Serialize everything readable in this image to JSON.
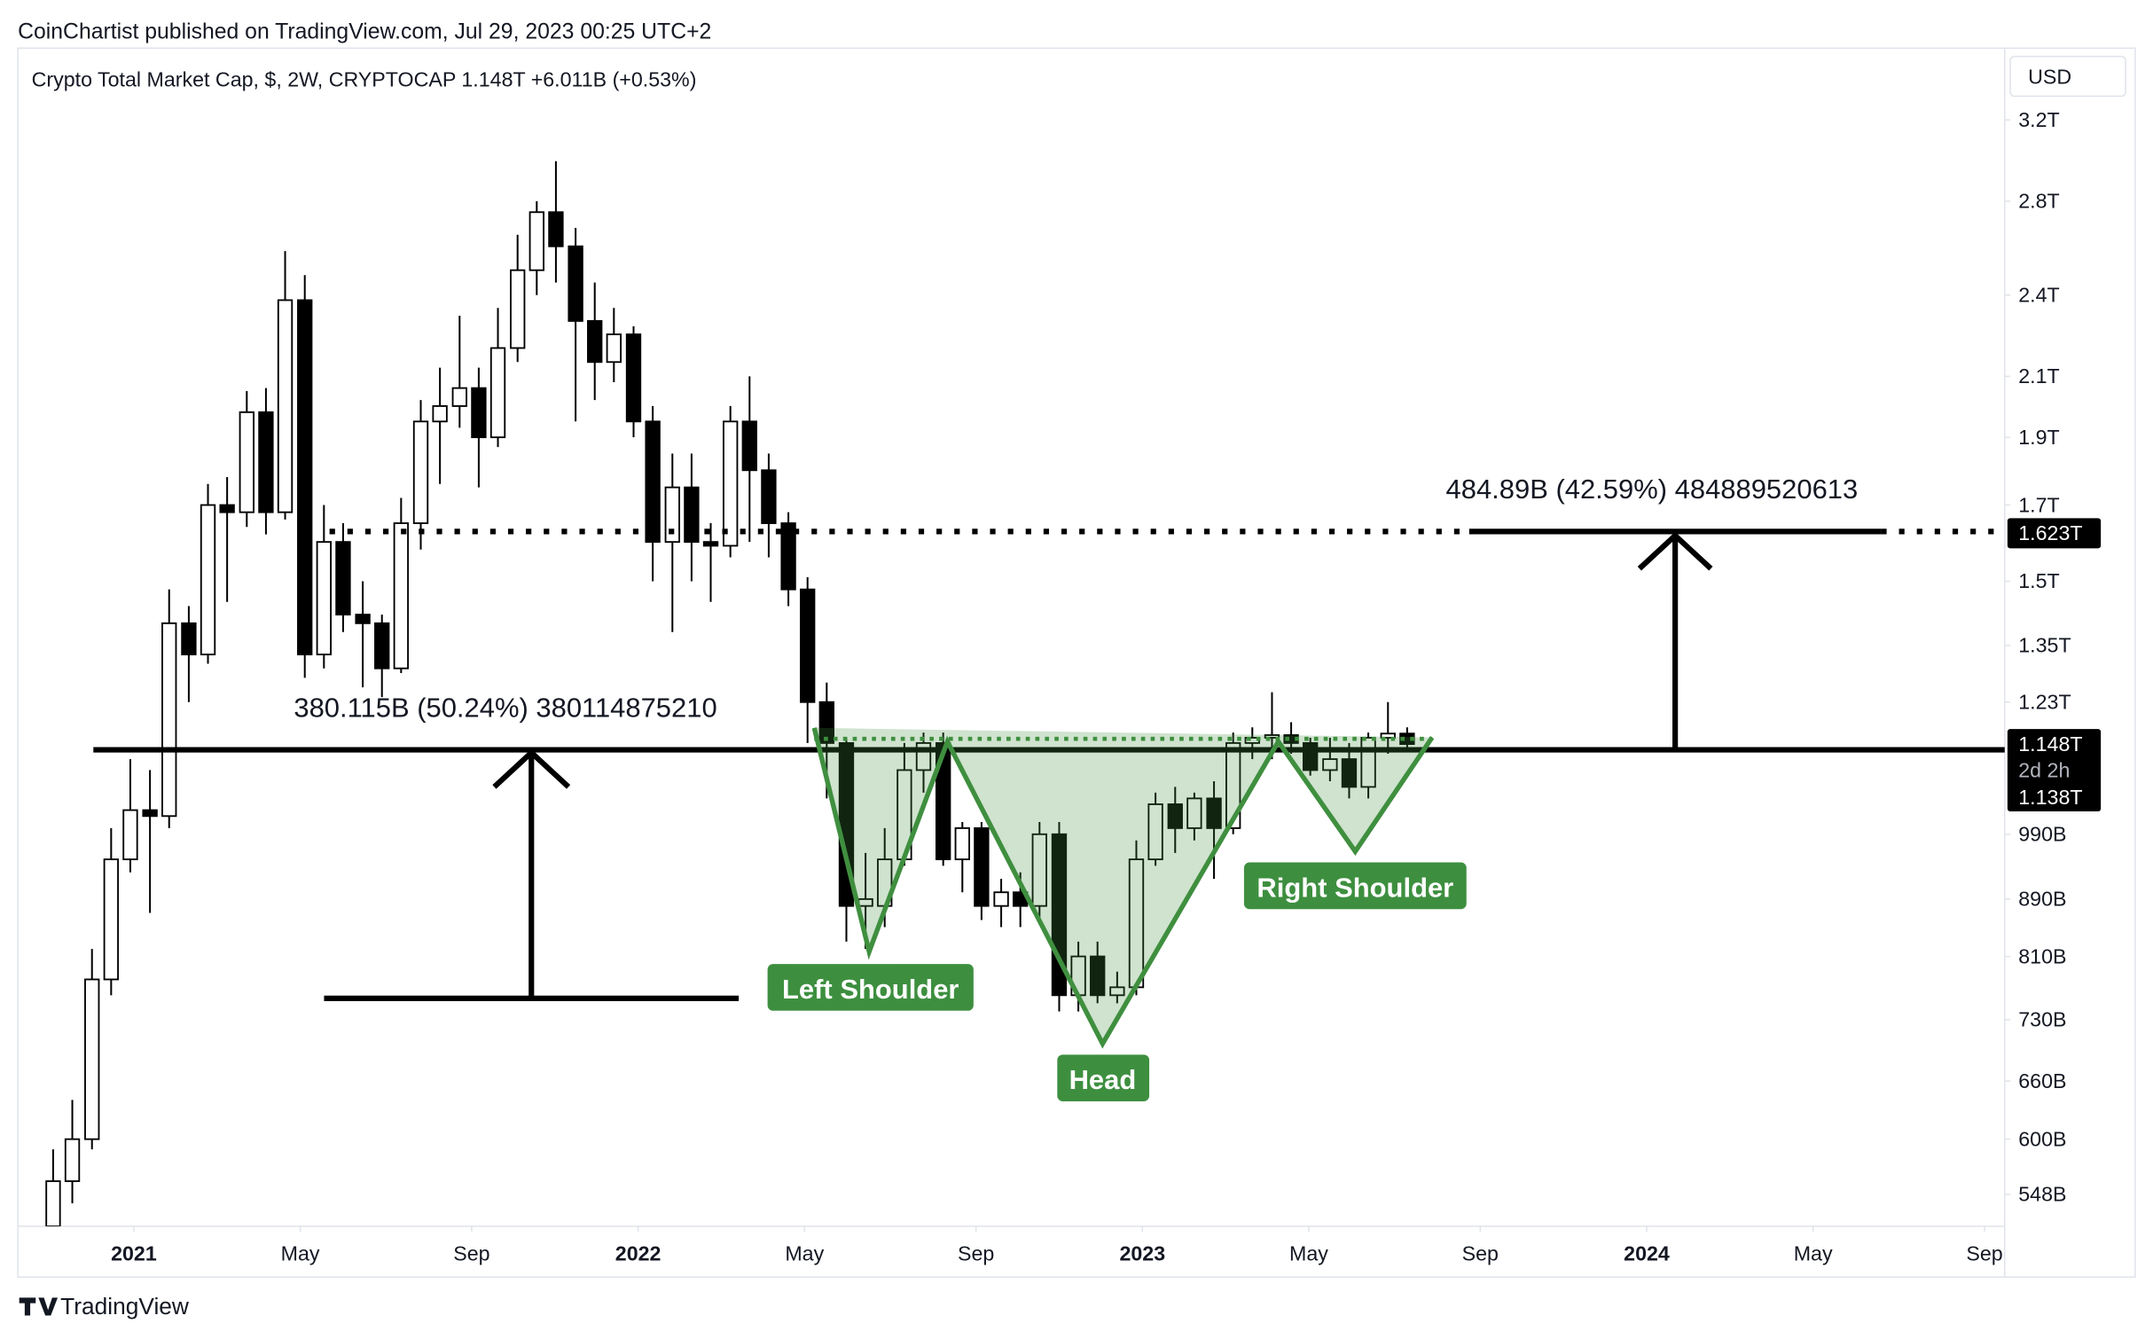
{
  "header": {
    "publisher": "CoinChartist published on TradingView.com, Jul 29, 2023 00:25 UTC+2",
    "currency": "USD",
    "footer": "TradingView"
  },
  "chart_data": {
    "type": "candlestick",
    "title": "Crypto Total Market Cap, $, 2W, CRYPTOCAP  1.148T  +6.011B (+0.53%)",
    "log_scale": true,
    "grid": false,
    "up_color": "#ffffff",
    "down_color": "#000000",
    "x": [
      2020.84,
      2020.878,
      2020.917,
      2020.955,
      2020.993,
      2021.032,
      2021.07,
      2021.109,
      2021.147,
      2021.185,
      2021.224,
      2021.262,
      2021.3,
      2021.339,
      2021.377,
      2021.415,
      2021.454,
      2021.492,
      2021.53,
      2021.569,
      2021.607,
      2021.646,
      2021.684,
      2021.722,
      2021.761,
      2021.799,
      2021.837,
      2021.876,
      2021.914,
      2021.952,
      2021.991,
      2022.029,
      2022.068,
      2022.106,
      2022.144,
      2022.183,
      2022.221,
      2022.259,
      2022.298,
      2022.336,
      2022.374,
      2022.413,
      2022.451,
      2022.489,
      2022.528,
      2022.566,
      2022.605,
      2022.643,
      2022.681,
      2022.72,
      2022.758,
      2022.796,
      2022.835,
      2022.873,
      2022.911,
      2022.95,
      2022.988,
      2023.026,
      2023.065,
      2023.103,
      2023.142,
      2023.18,
      2023.218,
      2023.257,
      2023.295,
      2023.333,
      2023.372,
      2023.41,
      2023.448,
      2023.487,
      2023.525
    ],
    "open": [
      520,
      560,
      600,
      780,
      950,
      1030,
      1020,
      1400,
      1330,
      1700,
      1680,
      1980,
      1680,
      2380,
      1330,
      1600,
      1420,
      1400,
      1300,
      1650,
      1950,
      2000,
      2060,
      1900,
      2200,
      2500,
      2750,
      2600,
      2300,
      2150,
      2250,
      1950,
      1600,
      1750,
      1600,
      1590,
      1950,
      1800,
      1650,
      1480,
      1230,
      1150,
      880,
      880,
      950,
      1100,
      1150,
      950,
      1000,
      880,
      900,
      880,
      990,
      760,
      810,
      760,
      770,
      950,
      1040,
      1000,
      1050,
      1000,
      1150,
      1160,
      1165,
      1150,
      1100,
      1120,
      1070,
      1160,
      1168
    ],
    "high": [
      590,
      640,
      820,
      1000,
      1120,
      1100,
      1480,
      1440,
      1760,
      1780,
      2050,
      2060,
      2580,
      2480,
      1700,
      1650,
      1500,
      1420,
      1720,
      2020,
      2130,
      2320,
      2130,
      2350,
      2650,
      2800,
      2990,
      2680,
      2450,
      2350,
      2280,
      2000,
      1850,
      1850,
      1650,
      2000,
      2100,
      1850,
      1680,
      1510,
      1270,
      1160,
      960,
      1000,
      1150,
      1170,
      1170,
      1010,
      1010,
      920,
      930,
      1010,
      1010,
      830,
      830,
      790,
      980,
      1060,
      1070,
      1060,
      1080,
      1170,
      1180,
      1250,
      1190,
      1160,
      1160,
      1150,
      1170,
      1230,
      1180
    ],
    "low": [
      510,
      540,
      590,
      760,
      930,
      870,
      1000,
      1230,
      1310,
      1450,
      1640,
      1620,
      1660,
      1280,
      1300,
      1380,
      1260,
      1240,
      1290,
      1580,
      1760,
      1930,
      1750,
      1870,
      2150,
      2400,
      2450,
      1950,
      2020,
      2080,
      1900,
      1500,
      1380,
      1500,
      1450,
      1560,
      1600,
      1560,
      1440,
      1150,
      1050,
      830,
      820,
      850,
      940,
      1060,
      940,
      900,
      860,
      850,
      850,
      860,
      740,
      740,
      750,
      750,
      760,
      940,
      960,
      980,
      920,
      990,
      1120,
      1120,
      1130,
      1090,
      1080,
      1050,
      1050,
      1130,
      1140
    ],
    "close": [
      560,
      600,
      780,
      950,
      1030,
      1020,
      1400,
      1330,
      1700,
      1680,
      1980,
      1680,
      2380,
      1330,
      1600,
      1420,
      1400,
      1300,
      1650,
      1950,
      2000,
      2060,
      1900,
      2200,
      2500,
      2750,
      2600,
      2300,
      2150,
      2250,
      1950,
      1600,
      1750,
      1600,
      1590,
      1950,
      1800,
      1650,
      1480,
      1230,
      1150,
      880,
      890,
      950,
      1100,
      1150,
      950,
      1000,
      880,
      900,
      880,
      990,
      760,
      810,
      760,
      770,
      950,
      1040,
      1000,
      1050,
      1000,
      1150,
      1160,
      1165,
      1150,
      1100,
      1120,
      1070,
      1160,
      1168,
      1148
    ],
    "xlim": [
      2020.77,
      2024.71
    ],
    "xticks": [
      2021,
      {
        "value": 2021.33,
        "label": "May"
      },
      {
        "value": 2021.67,
        "label": "Sep"
      },
      2022,
      {
        "value": 2022.33,
        "label": "May"
      },
      {
        "value": 2022.67,
        "label": "Sep"
      },
      2023,
      {
        "value": 2023.33,
        "label": "May"
      },
      {
        "value": 2023.67,
        "label": "Sep"
      },
      2024,
      {
        "value": 2024.33,
        "label": "May"
      },
      {
        "value": 2024.67,
        "label": "Sep"
      }
    ],
    "ylim": [
      520,
      3600
    ],
    "yticks": [
      {
        "value": 548,
        "label": "548B"
      },
      {
        "value": 600,
        "label": "600B"
      },
      {
        "value": 660,
        "label": "660B"
      },
      {
        "value": 730,
        "label": "730B"
      },
      {
        "value": 810,
        "label": "810B"
      },
      {
        "value": 890,
        "label": "890B"
      },
      {
        "value": 990,
        "label": "990B"
      },
      {
        "value": 1230,
        "label": "1.23T"
      },
      {
        "value": 1350,
        "label": "1.35T"
      },
      {
        "value": 1500,
        "label": "1.5T"
      },
      {
        "value": 1700,
        "label": "1.7T"
      },
      {
        "value": 1900,
        "label": "1.9T"
      },
      {
        "value": 2100,
        "label": "2.1T"
      },
      {
        "value": 2400,
        "label": "2.4T"
      },
      {
        "value": 2800,
        "label": "2.8T"
      },
      {
        "value": 3200,
        "label": "3.2T"
      }
    ],
    "price_labels": [
      {
        "value": 1623,
        "label": "1.623T"
      },
      {
        "value": 1148,
        "label": "1.148T"
      },
      {
        "value": 1138,
        "label": "1.138T"
      }
    ],
    "countdown": "2d 2h",
    "annotations": {
      "measure_left": "380.115B (50.24%) 380114875210",
      "measure_right": "484.89B (42.59%) 484889520613",
      "left_shoulder": "Left Shoulder",
      "head": "Head",
      "right_shoulder": "Right Shoulder"
    }
  }
}
